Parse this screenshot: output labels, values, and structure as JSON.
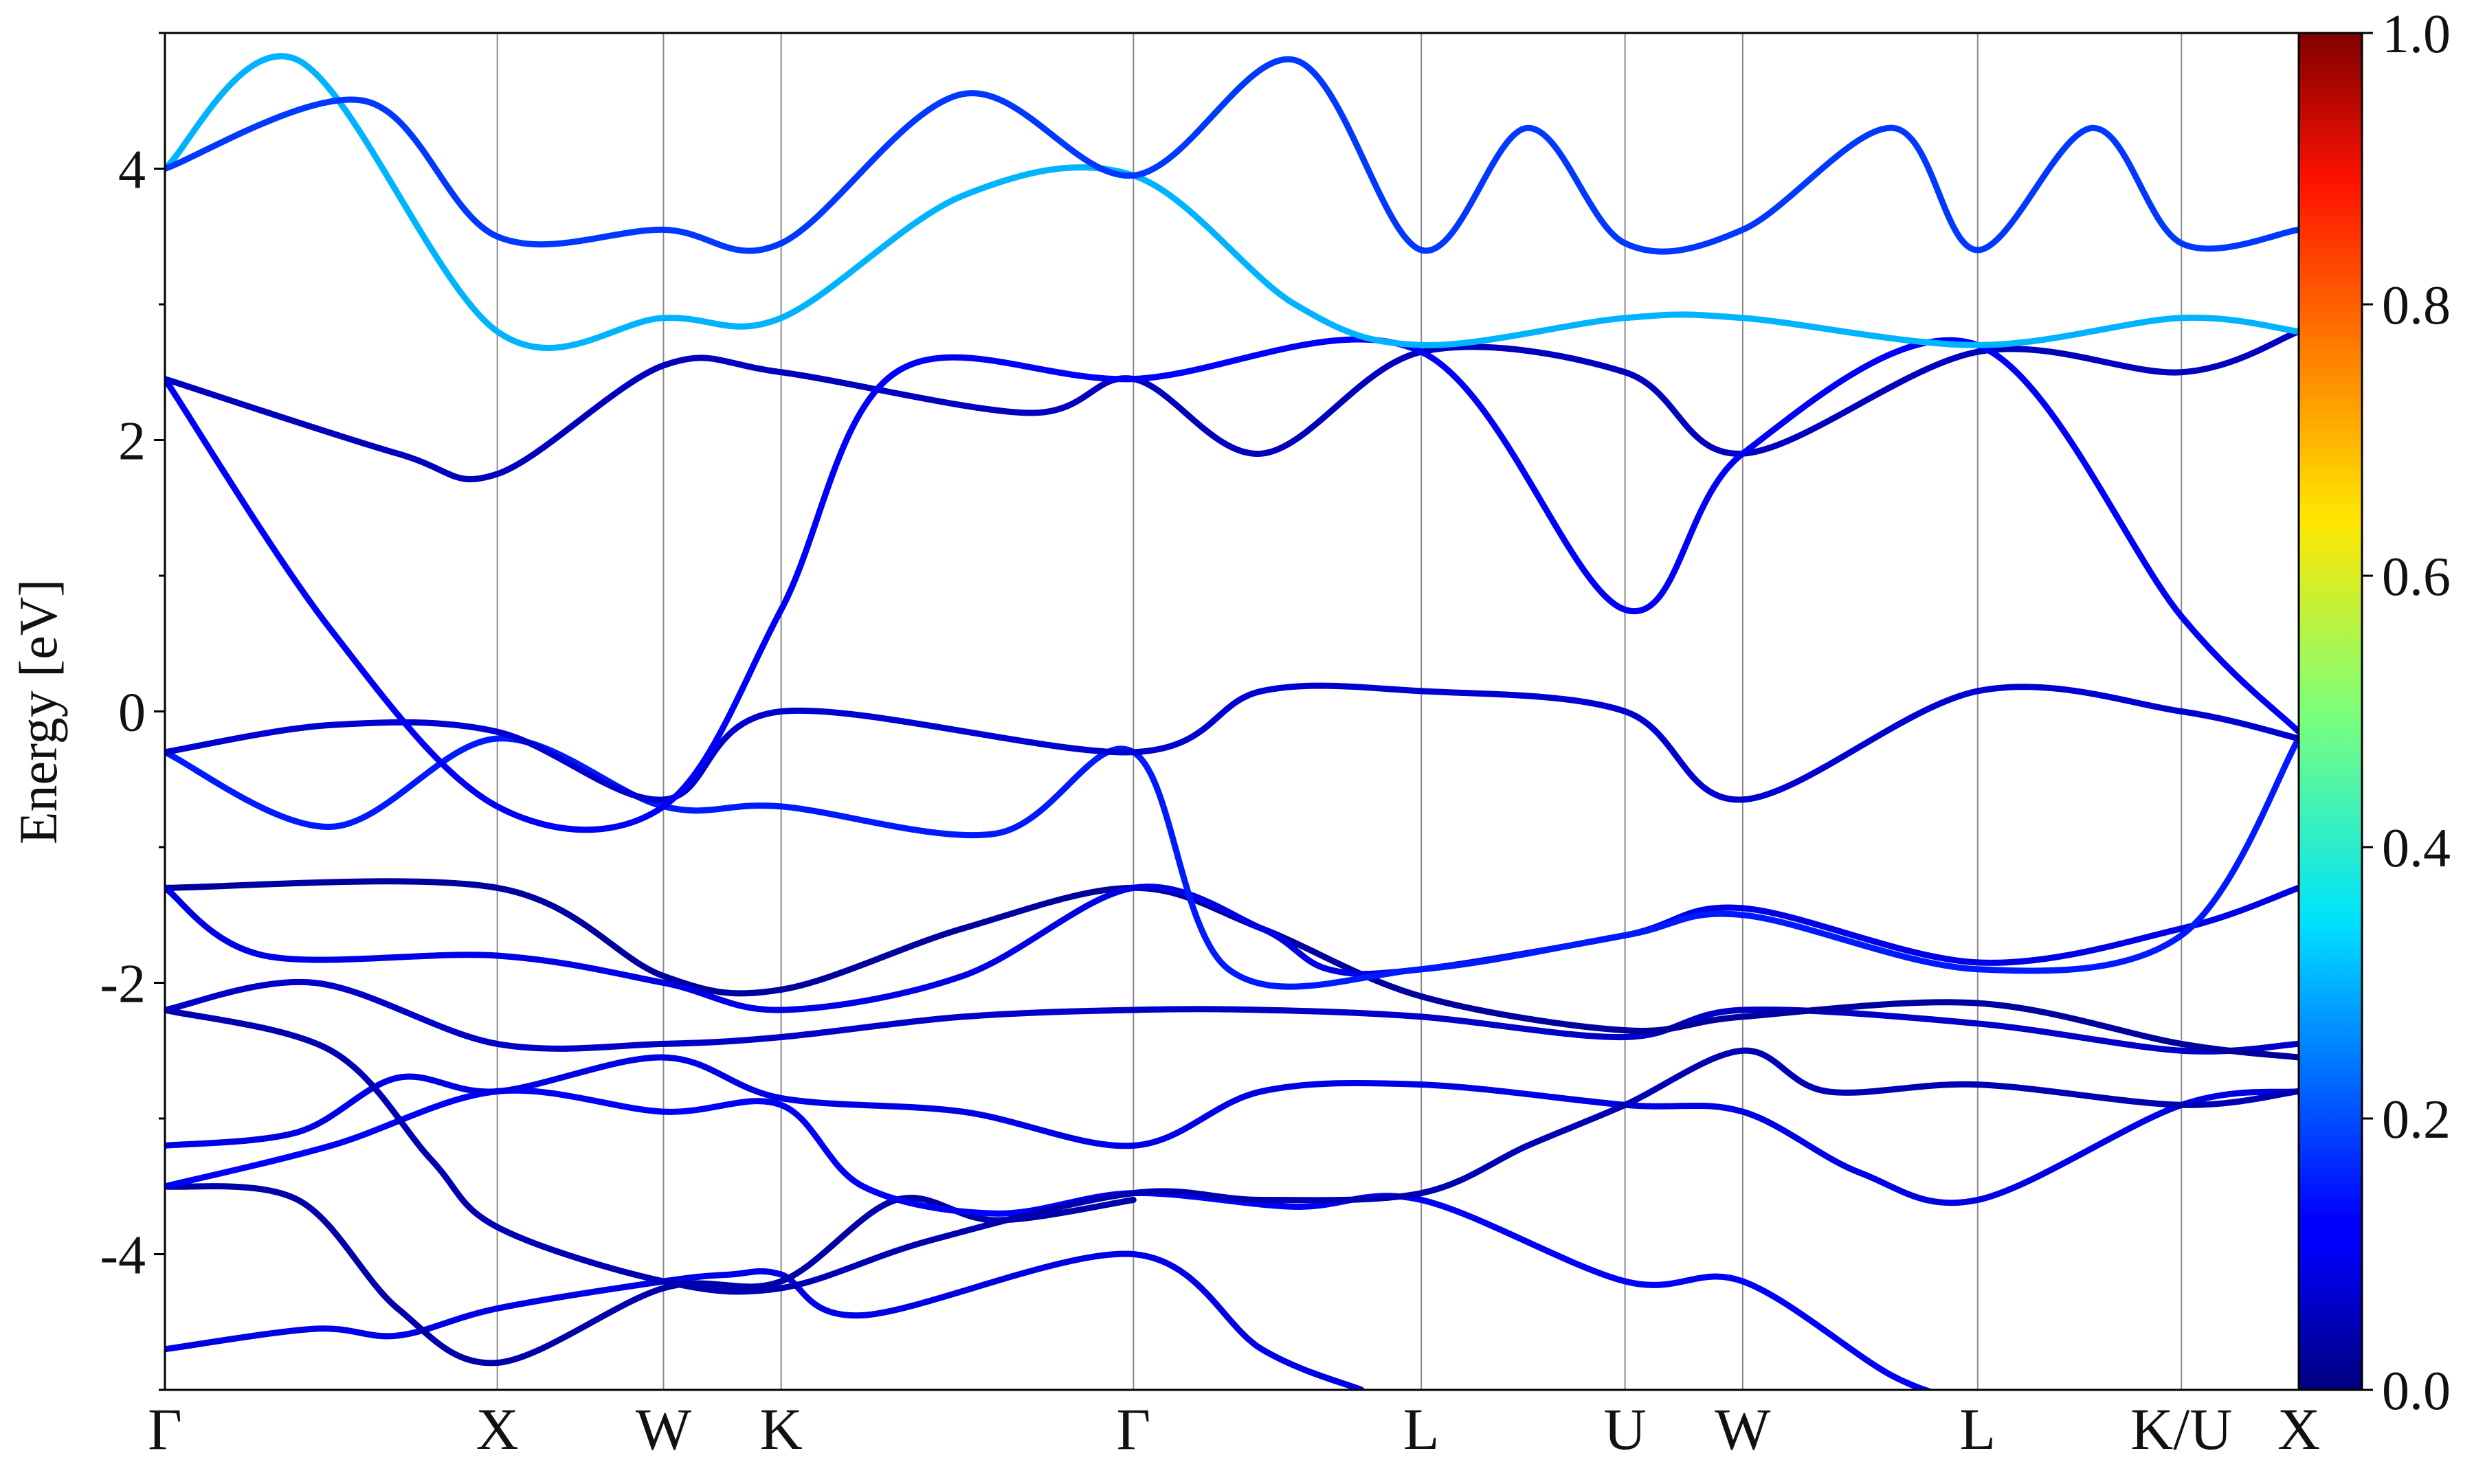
{
  "chart_data": {
    "type": "line",
    "title": "",
    "xlabel": "",
    "ylabel": "Energy [eV]",
    "ylim": [
      -5,
      5
    ],
    "yticks": [
      -4,
      -2,
      0,
      2,
      4
    ],
    "high_symmetry_points": [
      {
        "label": "Γ",
        "x": 0.0
      },
      {
        "label": "X",
        "x": 1.0
      },
      {
        "label": "W",
        "x": 1.5
      },
      {
        "label": "K",
        "x": 1.854
      },
      {
        "label": "Γ",
        "x": 2.914
      },
      {
        "label": "L",
        "x": 3.78
      },
      {
        "label": "U",
        "x": 4.393
      },
      {
        "label": "W",
        "x": 4.747
      },
      {
        "label": "L",
        "x": 5.454
      },
      {
        "label": "K/U",
        "x": 6.067
      },
      {
        "label": "X",
        "x": 6.42
      }
    ],
    "colorbar": {
      "min": 0.0,
      "max": 1.0,
      "ticks": [
        "0.0",
        "0.2",
        "0.4",
        "0.6",
        "0.8",
        "1.0"
      ],
      "colormap": "jet"
    },
    "bands": [
      {
        "points": [
          [
            0,
            -4.7
          ],
          [
            0.45,
            -4.55
          ],
          [
            0.7,
            -4.6
          ],
          [
            1.0,
            -4.4
          ],
          [
            1.5,
            -4.2
          ],
          [
            1.7,
            -4.15
          ],
          [
            1.854,
            -4.15
          ],
          [
            2.1,
            -4.45
          ],
          [
            2.914,
            -4.0
          ],
          [
            3.3,
            -4.7
          ],
          [
            3.6,
            -5.0
          ]
        ],
        "weight": 0.1
      },
      {
        "points": [
          [
            0,
            -3.5
          ],
          [
            0.4,
            -3.6
          ],
          [
            0.7,
            -4.4
          ],
          [
            1.0,
            -4.8
          ],
          [
            1.5,
            -4.25
          ],
          [
            1.854,
            -4.2
          ],
          [
            2.2,
            -3.6
          ],
          [
            2.5,
            -3.75
          ],
          [
            2.914,
            -3.6
          ]
        ],
        "weight": 0.04
      },
      {
        "points": [
          [
            0,
            -3.5
          ],
          [
            0.5,
            -3.2
          ],
          [
            1.0,
            -2.8
          ],
          [
            1.5,
            -2.95
          ],
          [
            1.854,
            -2.9
          ],
          [
            2.1,
            -3.5
          ],
          [
            2.5,
            -3.7
          ],
          [
            2.914,
            -3.55
          ],
          [
            3.4,
            -3.65
          ],
          [
            3.78,
            -3.6
          ],
          [
            4.393,
            -4.2
          ],
          [
            4.747,
            -4.2
          ],
          [
            5.2,
            -4.9
          ],
          [
            5.454,
            -5.1
          ]
        ],
        "weight": 0.12
      },
      {
        "points": [
          [
            0,
            -3.2
          ],
          [
            0.4,
            -3.1
          ],
          [
            0.7,
            -2.7
          ],
          [
            1.0,
            -2.8
          ],
          [
            1.5,
            -2.55
          ],
          [
            1.854,
            -2.85
          ],
          [
            2.4,
            -2.95
          ],
          [
            2.914,
            -3.2
          ],
          [
            3.3,
            -2.8
          ],
          [
            3.78,
            -2.75
          ],
          [
            4.393,
            -2.9
          ],
          [
            4.747,
            -2.95
          ],
          [
            5.1,
            -3.4
          ],
          [
            5.454,
            -3.6
          ],
          [
            6.067,
            -2.9
          ],
          [
            6.42,
            -2.8
          ]
        ],
        "weight": 0.1
      },
      {
        "points": [
          [
            0,
            -2.2
          ],
          [
            0.5,
            -2.5
          ],
          [
            0.8,
            -3.3
          ],
          [
            1.0,
            -3.8
          ],
          [
            1.5,
            -4.2
          ],
          [
            1.854,
            -4.25
          ],
          [
            2.3,
            -3.9
          ],
          [
            2.914,
            -3.55
          ],
          [
            3.3,
            -3.6
          ],
          [
            3.78,
            -3.55
          ],
          [
            4.1,
            -3.2
          ],
          [
            4.393,
            -2.9
          ],
          [
            4.747,
            -2.5
          ],
          [
            5.0,
            -2.8
          ],
          [
            5.454,
            -2.75
          ],
          [
            6.067,
            -2.9
          ],
          [
            6.42,
            -2.8
          ]
        ],
        "weight": 0.05
      },
      {
        "points": [
          [
            0,
            -2.2
          ],
          [
            0.45,
            -2.0
          ],
          [
            1.0,
            -2.45
          ],
          [
            1.5,
            -2.45
          ],
          [
            1.854,
            -2.4
          ],
          [
            2.4,
            -2.25
          ],
          [
            2.914,
            -2.2
          ],
          [
            3.3,
            -2.2
          ],
          [
            3.78,
            -2.25
          ],
          [
            4.393,
            -2.4
          ],
          [
            4.747,
            -2.2
          ],
          [
            5.454,
            -2.3
          ],
          [
            6.067,
            -2.5
          ],
          [
            6.42,
            -2.45
          ]
        ],
        "weight": 0.07
      },
      {
        "points": [
          [
            0,
            -1.3
          ],
          [
            1.0,
            -1.3
          ],
          [
            1.5,
            -1.95
          ],
          [
            1.854,
            -2.05
          ],
          [
            2.4,
            -1.6
          ],
          [
            2.914,
            -1.3
          ],
          [
            3.3,
            -1.6
          ],
          [
            3.78,
            -2.1
          ],
          [
            4.393,
            -2.35
          ],
          [
            4.747,
            -2.25
          ],
          [
            5.454,
            -2.15
          ],
          [
            6.067,
            -2.45
          ],
          [
            6.42,
            -2.55
          ]
        ],
        "weight": 0.03
      },
      {
        "points": [
          [
            0,
            -1.3
          ],
          [
            0.3,
            -1.8
          ],
          [
            1.0,
            -1.8
          ],
          [
            1.5,
            -2.0
          ],
          [
            1.854,
            -2.2
          ],
          [
            2.4,
            -1.95
          ],
          [
            2.914,
            -1.3
          ],
          [
            3.3,
            -1.6
          ],
          [
            3.5,
            -1.9
          ],
          [
            3.78,
            -1.9
          ],
          [
            4.393,
            -1.65
          ],
          [
            4.747,
            -1.45
          ],
          [
            5.454,
            -1.85
          ],
          [
            6.067,
            -1.6
          ],
          [
            6.42,
            -1.3
          ]
        ],
        "weight": 0.1
      },
      {
        "points": [
          [
            0,
            -0.3
          ],
          [
            0.5,
            -0.85
          ],
          [
            1.0,
            -0.2
          ],
          [
            1.5,
            -0.7
          ],
          [
            1.854,
            -0.7
          ],
          [
            2.5,
            -0.9
          ],
          [
            2.914,
            -0.3
          ],
          [
            3.2,
            -1.9
          ],
          [
            3.78,
            -1.9
          ],
          [
            4.393,
            -1.65
          ],
          [
            4.747,
            -1.5
          ],
          [
            5.454,
            -1.9
          ],
          [
            6.067,
            -1.65
          ],
          [
            6.42,
            -0.2
          ]
        ],
        "weight": 0.15
      },
      {
        "points": [
          [
            0,
            -0.3
          ],
          [
            0.5,
            -0.1
          ],
          [
            1.0,
            -0.15
          ],
          [
            1.5,
            -0.65
          ],
          [
            1.854,
            0.0
          ],
          [
            2.914,
            -0.3
          ],
          [
            3.3,
            0.15
          ],
          [
            3.78,
            0.15
          ],
          [
            4.393,
            0.0
          ],
          [
            4.747,
            -0.65
          ],
          [
            5.454,
            0.15
          ],
          [
            6.067,
            0.0
          ],
          [
            6.42,
            -0.2
          ]
        ],
        "weight": 0.08
      },
      {
        "points": [
          [
            0,
            2.45
          ],
          [
            0.7,
            1.9
          ],
          [
            1.0,
            1.75
          ],
          [
            1.5,
            2.55
          ],
          [
            1.854,
            2.5
          ],
          [
            2.6,
            2.2
          ],
          [
            2.914,
            2.45
          ],
          [
            3.3,
            1.9
          ],
          [
            3.78,
            2.65
          ],
          [
            4.393,
            2.5
          ],
          [
            4.747,
            1.9
          ],
          [
            5.454,
            2.65
          ],
          [
            6.067,
            2.5
          ],
          [
            6.42,
            2.8
          ]
        ],
        "weight": 0.06
      },
      {
        "points": [
          [
            0,
            2.45
          ],
          [
            0.5,
            0.6
          ],
          [
            1.0,
            -0.7
          ],
          [
            1.5,
            -0.7
          ],
          [
            1.854,
            0.75
          ],
          [
            2.2,
            2.5
          ],
          [
            2.914,
            2.45
          ],
          [
            3.78,
            2.65
          ],
          [
            4.393,
            0.75
          ],
          [
            4.747,
            1.9
          ],
          [
            5.454,
            2.7
          ],
          [
            6.067,
            0.7
          ],
          [
            6.42,
            -0.15
          ]
        ],
        "weight": 0.12
      },
      {
        "points": [
          [
            0,
            4.0
          ],
          [
            0.4,
            4.8
          ],
          [
            1.0,
            2.8
          ],
          [
            1.5,
            2.9
          ],
          [
            1.854,
            2.9
          ],
          [
            2.4,
            3.8
          ],
          [
            2.914,
            3.95
          ],
          [
            3.4,
            3.0
          ],
          [
            3.78,
            2.7
          ],
          [
            4.393,
            2.9
          ],
          [
            4.747,
            2.9
          ],
          [
            5.454,
            2.7
          ],
          [
            6.067,
            2.9
          ],
          [
            6.42,
            2.8
          ]
        ],
        "weight": 0.3
      },
      {
        "points": [
          [
            0,
            4.0
          ],
          [
            0.6,
            4.5
          ],
          [
            1.0,
            3.5
          ],
          [
            1.5,
            3.55
          ],
          [
            1.854,
            3.45
          ],
          [
            2.4,
            4.55
          ],
          [
            2.914,
            3.95
          ],
          [
            3.4,
            4.8
          ],
          [
            3.78,
            3.4
          ],
          [
            4.1,
            4.3
          ],
          [
            4.393,
            3.45
          ],
          [
            4.747,
            3.55
          ],
          [
            5.2,
            4.3
          ],
          [
            5.454,
            3.4
          ],
          [
            5.8,
            4.3
          ],
          [
            6.067,
            3.45
          ],
          [
            6.42,
            3.55
          ]
        ],
        "weight": 0.18
      }
    ]
  }
}
